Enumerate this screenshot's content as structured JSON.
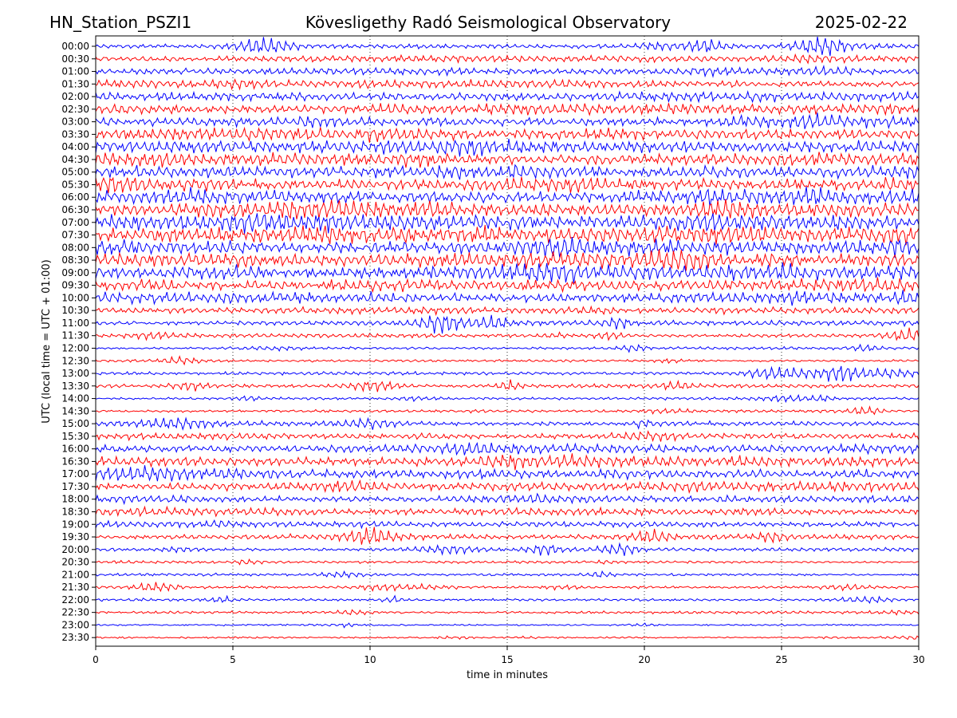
{
  "header": {
    "station": "HN_Station_PSZI1",
    "observatory": "Kövesligethy Radó Seismological Observatory",
    "date": "2025-02-22"
  },
  "colors": {
    "even_trace": "#0000ff",
    "odd_trace": "#ff0000",
    "grid": "#000000"
  },
  "chart_data": {
    "type": "line",
    "title": "Kövesligethy Radó Seismological Observatory",
    "xlabel": "time in minutes",
    "ylabel": "UTC (local time = UTC + 01:00)",
    "xlim": [
      0,
      30
    ],
    "x_ticks": [
      "0",
      "5",
      "10",
      "15",
      "20",
      "25",
      "30"
    ],
    "grid": "vertical dotted at x ticks",
    "rows": [
      "00:00",
      "00:30",
      "01:00",
      "01:30",
      "02:00",
      "02:30",
      "03:00",
      "03:30",
      "04:00",
      "04:30",
      "05:00",
      "05:30",
      "06:00",
      "06:30",
      "07:00",
      "07:30",
      "08:00",
      "08:30",
      "09:00",
      "09:30",
      "10:00",
      "10:30",
      "11:00",
      "11:30",
      "12:00",
      "12:30",
      "13:00",
      "13:30",
      "14:00",
      "14:30",
      "15:00",
      "15:30",
      "16:00",
      "16:30",
      "17:00",
      "17:30",
      "18:00",
      "18:30",
      "19:00",
      "19:30",
      "20:00",
      "20:30",
      "21:00",
      "21:30",
      "22:00",
      "22:30",
      "23:00",
      "23:30"
    ],
    "row_activity": [
      4,
      5,
      5,
      6,
      7,
      8,
      8,
      9,
      10,
      10,
      10,
      10,
      11,
      11,
      12,
      12,
      12,
      11,
      11,
      10,
      9,
      5,
      4,
      3,
      2,
      2,
      3,
      3,
      2,
      2,
      4,
      5,
      7,
      8,
      8,
      7,
      6,
      6,
      5,
      4,
      3,
      2,
      2,
      2,
      2,
      2,
      1,
      1
    ],
    "row_colors": [
      "blue",
      "red"
    ]
  }
}
